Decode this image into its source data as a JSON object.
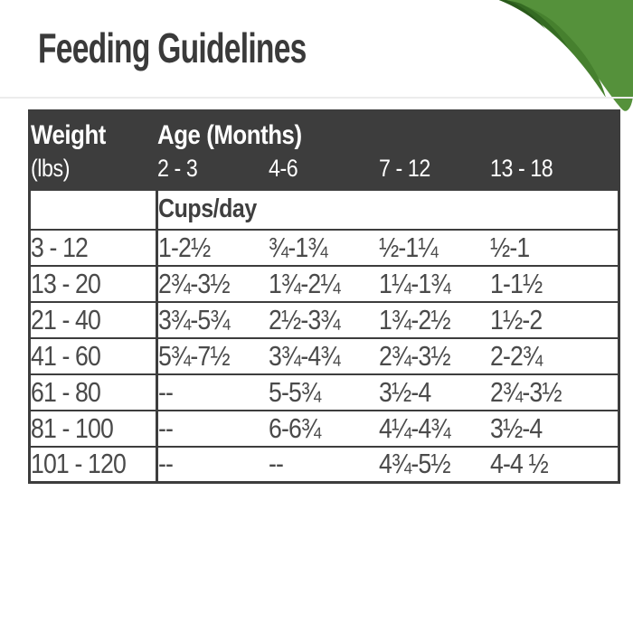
{
  "page": {
    "title": "Feeding Guidelines"
  },
  "table": {
    "header": {
      "weight_label": "Weight",
      "weight_unit": "(lbs)",
      "age_label": "Age (Months)",
      "age_columns": [
        "2 - 3",
        "4-6",
        "7 - 12",
        "13 - 18"
      ]
    },
    "units_row_label": "Cups/day",
    "rows": [
      {
        "weight": "3 - 12",
        "values": [
          "1-2½",
          "¾-1¾",
          "½-1¼",
          "½-1"
        ]
      },
      {
        "weight": "13 - 20",
        "values": [
          "2¾-3½",
          "1¾-2¼",
          "1¼-1¾",
          "1-1½"
        ]
      },
      {
        "weight": "21 - 40",
        "values": [
          "3¾-5¾",
          "2½-3¾",
          "1¾-2½",
          "1½-2"
        ]
      },
      {
        "weight": "41 - 60",
        "values": [
          "5¾-7½",
          "3¾-4¾",
          "2¾-3½",
          "2-2¾"
        ]
      },
      {
        "weight": "61 - 80",
        "values": [
          "--",
          "5-5¾",
          "3½-4",
          "2¾-3½"
        ]
      },
      {
        "weight": "81 - 100",
        "values": [
          "--",
          "6-6¾",
          "4¼-4¾",
          "3½-4"
        ]
      },
      {
        "weight": "101 - 120",
        "values": [
          "--",
          "--",
          "4¾-5½",
          "4-4 ½"
        ]
      }
    ]
  },
  "colors": {
    "title_text": "#3a3a3a",
    "header_bg": "#3d3d3d",
    "header_text": "#ffffff",
    "cell_text": "#4a4a4a",
    "table_border": "#3d3d3d",
    "divider_line": "#ececec",
    "green_main": "#55913b",
    "green_band": "#46802e",
    "green_mid_dark": "#356b23",
    "green_darkest": "#2a5a1b"
  }
}
